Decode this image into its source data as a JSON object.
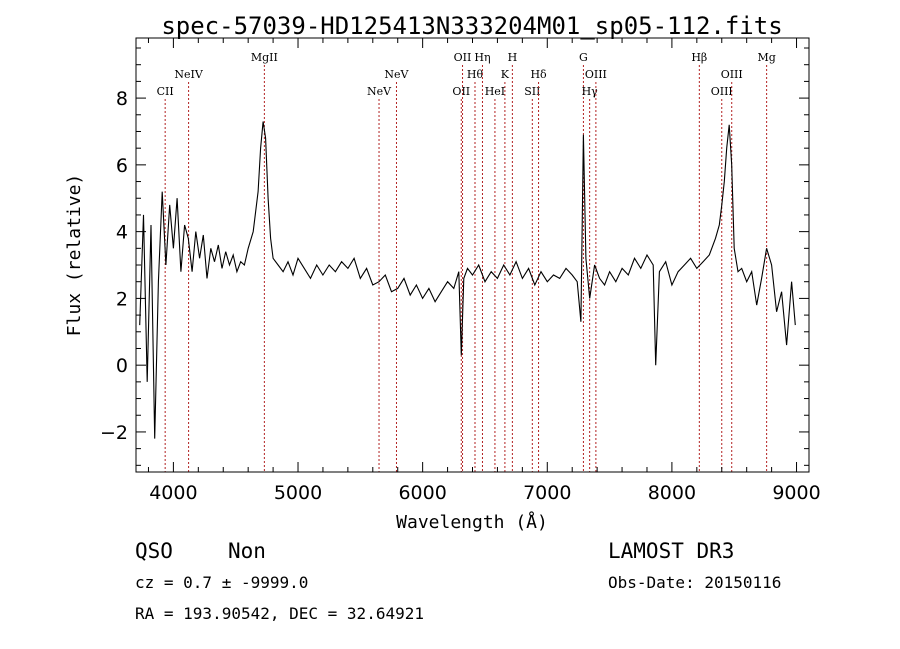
{
  "chart_data": {
    "type": "line",
    "title": "spec-57039-HD125413N333204M01_sp05-112.fits",
    "xlabel": "Wavelength (Å)",
    "ylabel": "Flux (relative)",
    "xlim": [
      3700,
      9100
    ],
    "ylim": [
      -3.2,
      9.8
    ],
    "xticks": [
      4000,
      5000,
      6000,
      7000,
      8000,
      9000
    ],
    "yticks": [
      -2,
      0,
      2,
      4,
      6,
      8
    ],
    "grid": false,
    "line_color": "#000000",
    "marker_color": "#b22222",
    "series": [
      {
        "x": [
          3730,
          3760,
          3790,
          3820,
          3850,
          3880,
          3910,
          3940,
          3970,
          4000,
          4030,
          4060,
          4090,
          4120,
          4150,
          4180,
          4210,
          4240,
          4270,
          4300,
          4330,
          4360,
          4390,
          4420,
          4450,
          4480,
          4510,
          4540,
          4570,
          4600,
          4640,
          4680,
          4700,
          4720,
          4740,
          4760,
          4780,
          4800,
          4840,
          4880,
          4920,
          4960,
          5000,
          5050,
          5100,
          5150,
          5200,
          5250,
          5300,
          5350,
          5400,
          5450,
          5500,
          5550,
          5600,
          5650,
          5700,
          5750,
          5800,
          5850,
          5900,
          5950,
          6000,
          6050,
          6100,
          6150,
          6200,
          6250,
          6290,
          6310,
          6330,
          6360,
          6400,
          6450,
          6500,
          6550,
          6600,
          6650,
          6700,
          6750,
          6800,
          6850,
          6900,
          6950,
          7000,
          7050,
          7100,
          7150,
          7200,
          7240,
          7270,
          7290,
          7310,
          7340,
          7380,
          7420,
          7460,
          7500,
          7550,
          7600,
          7650,
          7700,
          7750,
          7800,
          7850,
          7870,
          7900,
          7950,
          8000,
          8050,
          8100,
          8150,
          8200,
          8250,
          8300,
          8350,
          8380,
          8400,
          8420,
          8440,
          8460,
          8480,
          8500,
          8530,
          8560,
          8600,
          8640,
          8680,
          8720,
          8760,
          8800,
          8840,
          8880,
          8920,
          8960,
          8990
        ],
        "y": [
          1.2,
          4.5,
          -0.5,
          4.2,
          -2.2,
          2.5,
          5.2,
          3.0,
          4.8,
          3.5,
          5.0,
          2.8,
          4.2,
          3.8,
          2.8,
          4.0,
          3.2,
          3.9,
          2.6,
          3.5,
          3.1,
          3.6,
          2.9,
          3.4,
          3.0,
          3.3,
          2.8,
          3.1,
          3.0,
          3.5,
          4.0,
          5.2,
          6.5,
          7.3,
          6.8,
          5.0,
          3.8,
          3.2,
          3.0,
          2.8,
          3.1,
          2.7,
          3.2,
          2.9,
          2.6,
          3.0,
          2.7,
          3.0,
          2.8,
          3.1,
          2.9,
          3.2,
          2.6,
          2.9,
          2.4,
          2.5,
          2.7,
          2.2,
          2.3,
          2.6,
          2.1,
          2.4,
          2.0,
          2.3,
          1.9,
          2.2,
          2.5,
          2.3,
          2.8,
          0.3,
          2.6,
          2.9,
          2.7,
          3.0,
          2.5,
          2.8,
          2.6,
          3.0,
          2.7,
          3.1,
          2.6,
          2.9,
          2.4,
          2.8,
          2.5,
          2.7,
          2.6,
          2.9,
          2.7,
          2.5,
          1.3,
          6.9,
          3.2,
          2.0,
          3.0,
          2.6,
          2.4,
          2.8,
          2.5,
          2.9,
          2.7,
          3.2,
          2.9,
          3.3,
          3.0,
          0.0,
          2.8,
          3.1,
          2.4,
          2.8,
          3.0,
          3.2,
          2.9,
          3.1,
          3.3,
          3.8,
          4.2,
          4.8,
          5.5,
          6.5,
          7.2,
          6.0,
          3.5,
          2.8,
          2.9,
          2.5,
          2.8,
          1.8,
          2.6,
          3.5,
          3.0,
          1.6,
          2.2,
          0.6,
          2.5,
          1.2
        ]
      }
    ],
    "lines": [
      {
        "name": "CII",
        "x": 3934,
        "row": 3
      },
      {
        "name": "NeIV",
        "x": 4122,
        "row": 2
      },
      {
        "name": "MgII",
        "x": 4730,
        "row": 1
      },
      {
        "name": "NeV",
        "x": 5650,
        "row": 3
      },
      {
        "name": "NeV",
        "x": 5790,
        "row": 2
      },
      {
        "name": "OII",
        "x": 6310,
        "row": 3
      },
      {
        "name": "OII",
        "x": 6320,
        "row": 1
      },
      {
        "name": "Hθ",
        "x": 6420,
        "row": 2
      },
      {
        "name": "Hη",
        "x": 6480,
        "row": 1
      },
      {
        "name": "HeI",
        "x": 6580,
        "row": 3
      },
      {
        "name": "K",
        "x": 6660,
        "row": 2
      },
      {
        "name": "H",
        "x": 6720,
        "row": 1
      },
      {
        "name": "SII",
        "x": 6880,
        "row": 3
      },
      {
        "name": "Hδ",
        "x": 6930,
        "row": 2
      },
      {
        "name": "G",
        "x": 7290,
        "row": 1
      },
      {
        "name": "Hγ",
        "x": 7340,
        "row": 3
      },
      {
        "name": "OIII",
        "x": 7390,
        "row": 2
      },
      {
        "name": "Hβ",
        "x": 8220,
        "row": 1
      },
      {
        "name": "OIII",
        "x": 8400,
        "row": 3
      },
      {
        "name": "OIII",
        "x": 8480,
        "row": 2
      },
      {
        "name": "Mg",
        "x": 8760,
        "row": 1
      }
    ]
  },
  "info": {
    "class": "QSO",
    "subclass": "Non",
    "survey": "LAMOST DR3",
    "cz": "cz = 0.7 ± -9999.0",
    "obs_date": "Obs-Date: 20150116",
    "coords": "RA = 193.90542, DEC =  32.64921"
  }
}
